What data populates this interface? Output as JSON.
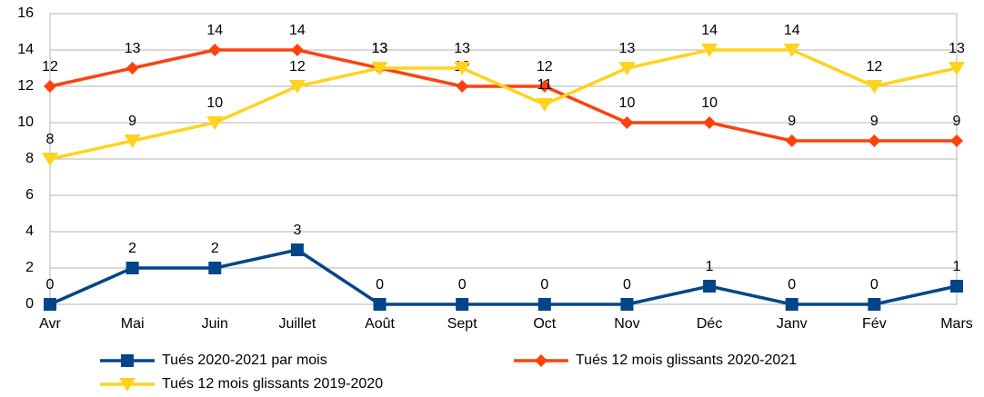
{
  "chart_data": {
    "type": "line",
    "categories": [
      "Avr",
      "Mai",
      "Juin",
      "Juillet",
      "Août",
      "Sept",
      "Oct",
      "Nov",
      "Déc",
      "Janv",
      "Fév",
      "Mars"
    ],
    "series": [
      {
        "name": "Tués 2020-2021 par mois",
        "color": "#004586",
        "marker": "square",
        "values": [
          0,
          2,
          2,
          3,
          0,
          0,
          0,
          0,
          1,
          0,
          0,
          1
        ]
      },
      {
        "name": "Tués 12 mois glissants 2020-2021",
        "color": "#ff420e",
        "marker": "diamond",
        "values": [
          12,
          13,
          14,
          14,
          13,
          12,
          12,
          10,
          10,
          9,
          9,
          9
        ]
      },
      {
        "name": "Tués 12 mois glissants 2019-2020",
        "color": "#ffd320",
        "marker": "triangle-down",
        "values": [
          8,
          9,
          10,
          12,
          13,
          13,
          11,
          13,
          14,
          14,
          12,
          13
        ]
      }
    ],
    "ylim": [
      0,
      16
    ],
    "yticks": [
      0,
      2,
      4,
      6,
      8,
      10,
      12,
      14,
      16
    ],
    "grid": true,
    "legend": "bottom",
    "data_labels": true
  }
}
